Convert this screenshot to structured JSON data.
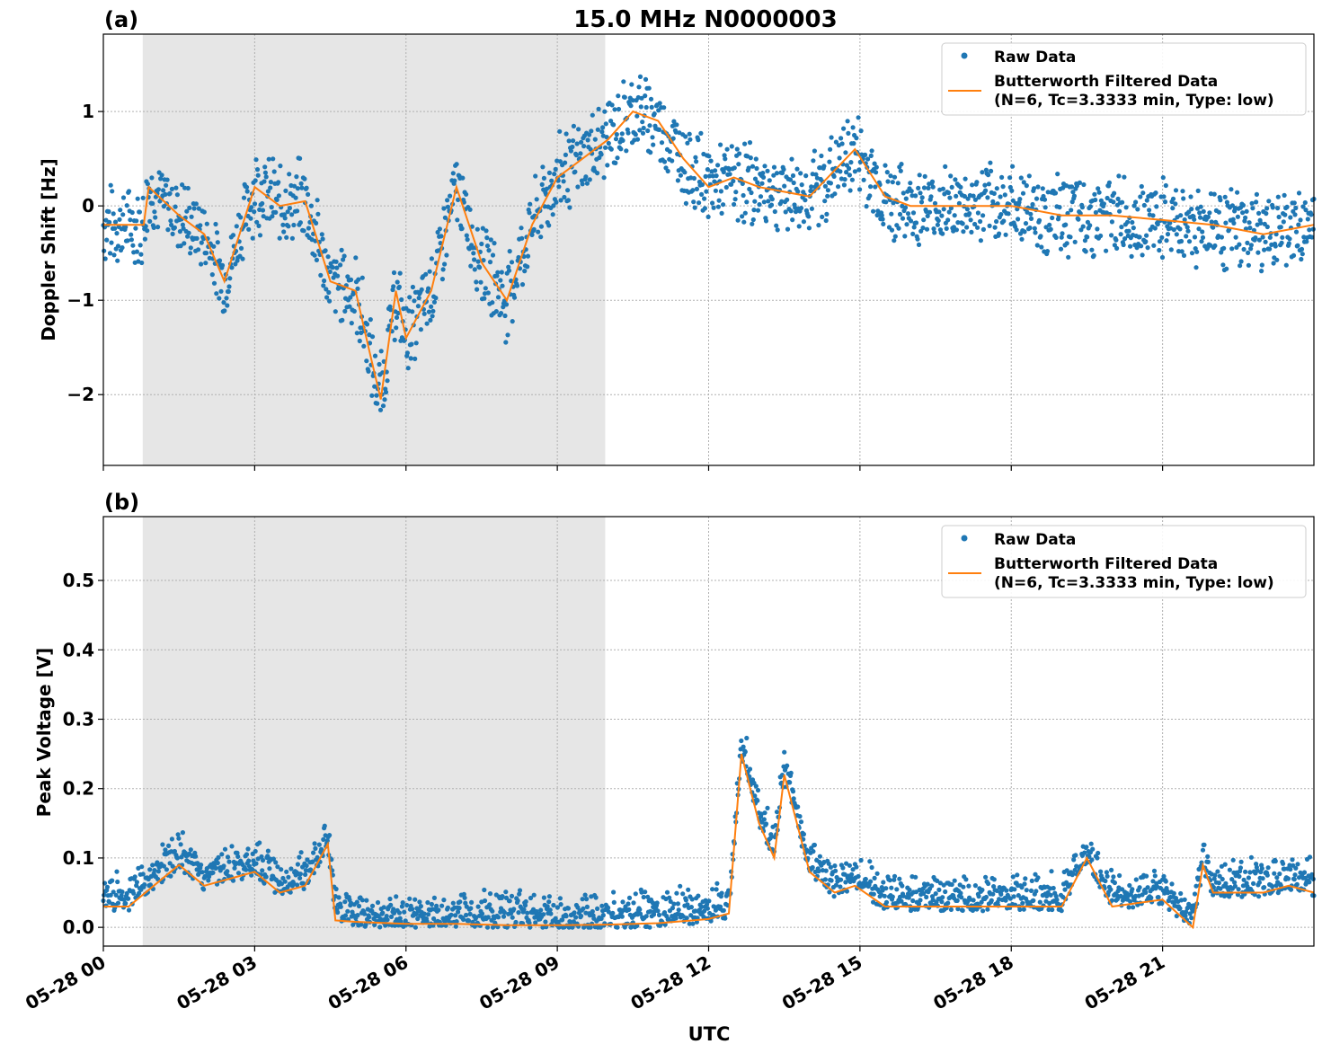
{
  "figure": {
    "title": "15.0 MHz N0000003",
    "xlabel": "UTC",
    "x_tick_labels": [
      "05-28 00",
      "05-28 03",
      "05-28 06",
      "05-28 09",
      "05-28 12",
      "05-28 15",
      "05-28 18",
      "05-28 21"
    ],
    "colors": {
      "raw": "#1f77b4",
      "filtered": "#ff7f0e",
      "shading": "#e6e6e6",
      "grid": "#b0b0b0"
    }
  },
  "chart_data": [
    {
      "type": "scatter",
      "panel_label": "(a)",
      "ylabel": "Doppler Shift [Hz]",
      "xlim_hours_utc": [
        0,
        24
      ],
      "ylim": [
        -2.75,
        1.82
      ],
      "y_ticks": [
        1,
        0,
        -1,
        -2
      ],
      "y_tick_labels": [
        "1",
        "0",
        "−1",
        "−2"
      ],
      "grid": true,
      "legend_placement": "top-right",
      "legend": [
        "Raw Data",
        "Butterworth Filtered Data",
        "(N=6, Tc=3.3333 min, Type: low)"
      ],
      "shaded_interval_hours_utc": [
        0.78,
        9.95
      ],
      "series": [
        {
          "name": "Raw Data",
          "kind": "points",
          "x": [
            0,
            0.8,
            0.9,
            1.5,
            2.0,
            2.4,
            3.0,
            3.5,
            4.0,
            4.5,
            5.0,
            5.3,
            5.5,
            5.8,
            6.0,
            6.5,
            7.0,
            7.5,
            8.0,
            8.5,
            9.0,
            9.5,
            10.0,
            10.5,
            11.0,
            11.5,
            12.0,
            12.5,
            13.0,
            14.0,
            14.9,
            15.5,
            16.0,
            17.0,
            18.0,
            19.0,
            20.0,
            21.0,
            22.0,
            22.5,
            23.0,
            24.0
          ],
          "y": [
            -0.2,
            -0.2,
            0.2,
            -0.1,
            -0.3,
            -0.8,
            0.2,
            0.0,
            0.05,
            -0.8,
            -0.9,
            -1.6,
            -2.05,
            -0.9,
            -1.4,
            -0.9,
            0.2,
            -0.6,
            -1.0,
            -0.2,
            0.3,
            0.5,
            0.7,
            1.0,
            0.9,
            0.5,
            0.2,
            0.3,
            0.2,
            0.1,
            0.6,
            0.1,
            0.0,
            0.0,
            0.0,
            -0.1,
            -0.1,
            -0.15,
            -0.2,
            -0.25,
            -0.3,
            -0.2
          ]
        },
        {
          "name": "Butterworth Filtered Data",
          "kind": "line",
          "x": [
            0,
            0.8,
            0.9,
            1.5,
            2.0,
            2.4,
            3.0,
            3.5,
            4.0,
            4.5,
            5.0,
            5.3,
            5.5,
            5.8,
            6.0,
            6.5,
            7.0,
            7.5,
            8.0,
            8.5,
            9.0,
            9.5,
            10.0,
            10.5,
            11.0,
            11.5,
            12.0,
            12.5,
            13.0,
            14.0,
            14.9,
            15.5,
            16.0,
            17.0,
            18.0,
            19.0,
            20.0,
            21.0,
            22.0,
            22.5,
            23.0,
            24.0
          ],
          "y": [
            -0.2,
            -0.2,
            0.2,
            -0.1,
            -0.3,
            -0.8,
            0.2,
            0.0,
            0.05,
            -0.8,
            -0.9,
            -1.6,
            -2.05,
            -0.9,
            -1.4,
            -0.9,
            0.2,
            -0.6,
            -1.0,
            -0.2,
            0.3,
            0.5,
            0.7,
            1.0,
            0.9,
            0.5,
            0.2,
            0.3,
            0.2,
            0.1,
            0.6,
            0.1,
            0.0,
            0.0,
            0.0,
            -0.1,
            -0.1,
            -0.15,
            -0.2,
            -0.25,
            -0.3,
            -0.2
          ]
        }
      ]
    },
    {
      "type": "scatter",
      "panel_label": "(b)",
      "ylabel": "Peak Voltage [V]",
      "xlim_hours_utc": [
        0,
        24
      ],
      "ylim": [
        -0.027,
        0.592
      ],
      "y_ticks": [
        0.0,
        0.1,
        0.2,
        0.3,
        0.4,
        0.5
      ],
      "y_tick_labels": [
        "0.0",
        "0.1",
        "0.2",
        "0.3",
        "0.4",
        "0.5"
      ],
      "grid": true,
      "legend_placement": "top-right",
      "legend": [
        "Raw Data",
        "Butterworth Filtered Data",
        "(N=6, Tc=3.3333 min, Type: low)"
      ],
      "shaded_interval_hours_utc": [
        0.78,
        9.95
      ],
      "series": [
        {
          "name": "Raw Data",
          "kind": "points",
          "x": [
            0,
            0.5,
            1.0,
            1.5,
            2.0,
            2.5,
            3.0,
            3.5,
            4.0,
            4.45,
            4.6,
            5.0,
            6.0,
            7.0,
            8.0,
            9.0,
            10.0,
            11.0,
            12.0,
            12.4,
            12.65,
            13.0,
            13.3,
            13.5,
            14.0,
            14.5,
            14.9,
            15.5,
            16.0,
            17.0,
            18.0,
            19.0,
            19.5,
            20.0,
            21.0,
            21.6,
            21.8,
            22.0,
            23.0,
            23.5,
            24.0
          ],
          "y": [
            0.03,
            0.03,
            0.06,
            0.09,
            0.06,
            0.07,
            0.08,
            0.05,
            0.06,
            0.12,
            0.01,
            0.008,
            0.005,
            0.005,
            0.003,
            0.003,
            0.004,
            0.006,
            0.012,
            0.02,
            0.25,
            0.15,
            0.1,
            0.22,
            0.08,
            0.05,
            0.06,
            0.03,
            0.03,
            0.03,
            0.03,
            0.03,
            0.1,
            0.03,
            0.04,
            0.0,
            0.09,
            0.05,
            0.05,
            0.06,
            0.05
          ]
        },
        {
          "name": "Butterworth Filtered Data",
          "kind": "line",
          "x": [
            0,
            0.5,
            1.0,
            1.5,
            2.0,
            2.5,
            3.0,
            3.5,
            4.0,
            4.45,
            4.6,
            5.0,
            6.0,
            7.0,
            8.0,
            9.0,
            10.0,
            11.0,
            12.0,
            12.4,
            12.65,
            13.0,
            13.3,
            13.5,
            14.0,
            14.5,
            14.9,
            15.5,
            16.0,
            17.0,
            18.0,
            19.0,
            19.5,
            20.0,
            21.0,
            21.6,
            21.8,
            22.0,
            23.0,
            23.5,
            24.0
          ],
          "y": [
            0.03,
            0.03,
            0.06,
            0.09,
            0.06,
            0.07,
            0.08,
            0.05,
            0.06,
            0.12,
            0.01,
            0.008,
            0.005,
            0.005,
            0.003,
            0.003,
            0.004,
            0.006,
            0.012,
            0.02,
            0.25,
            0.15,
            0.1,
            0.22,
            0.08,
            0.05,
            0.06,
            0.03,
            0.03,
            0.03,
            0.03,
            0.03,
            0.1,
            0.03,
            0.04,
            0.0,
            0.09,
            0.05,
            0.05,
            0.06,
            0.05
          ]
        }
      ]
    }
  ]
}
